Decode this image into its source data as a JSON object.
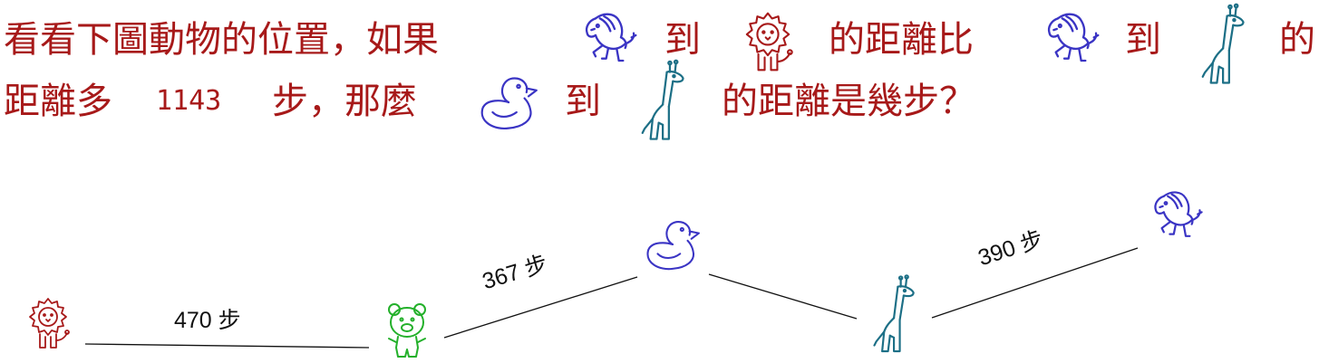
{
  "question": {
    "line1_intro": "看看下圖動物的位置，如果",
    "to_1": "到",
    "distance_compare": "的距離比",
    "to_2": "到",
    "of": "的",
    "line2_prefix": "距離多",
    "extra_steps": "1143",
    "steps_then": "步，那麼",
    "to_3": "到",
    "question_end": "的距離是幾步？"
  },
  "colors": {
    "question_text": "#a71919",
    "horse": "#3a34c4",
    "lion": "#a71919",
    "giraffe": "#1c6f86",
    "duck": "#3a34c4",
    "bear": "#23b02a",
    "edge": "#111111"
  },
  "icons": {
    "horse": "horse-icon",
    "lion": "lion-icon",
    "giraffe": "giraffe-icon",
    "duck": "duck-icon",
    "bear": "bear-icon"
  },
  "edges": [
    {
      "from": "lion",
      "to": "bear",
      "label": "470 步"
    },
    {
      "from": "bear",
      "to": "duck",
      "label": "367 步"
    },
    {
      "from": "duck",
      "to": "giraffe",
      "label": ""
    },
    {
      "from": "giraffe",
      "to": "horse",
      "label": "390 步"
    }
  ]
}
